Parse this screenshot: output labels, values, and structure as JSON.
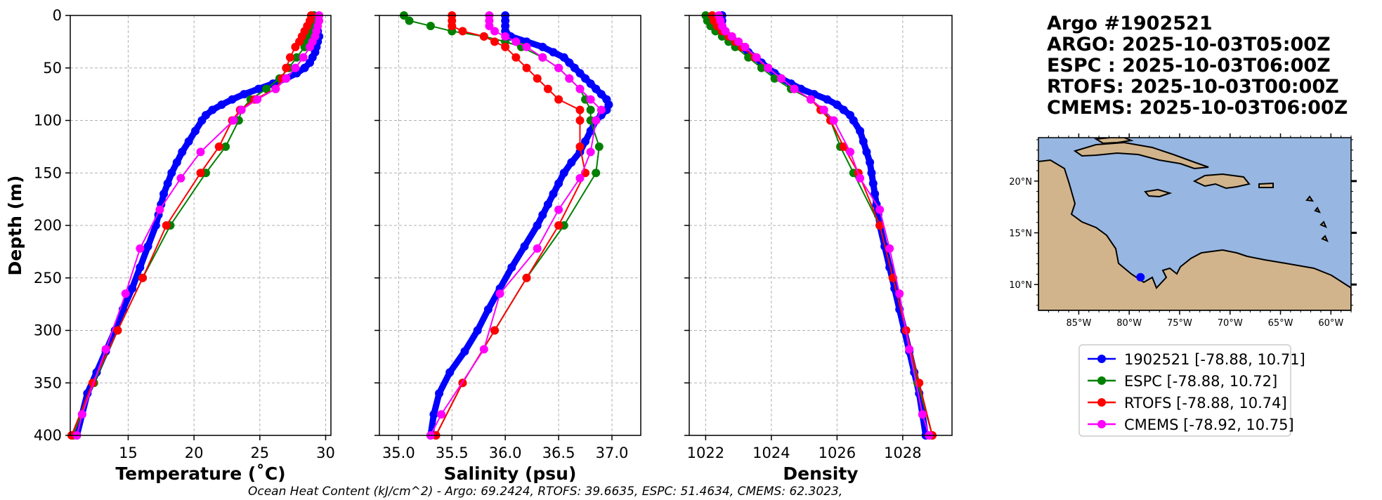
{
  "chart_data": [
    {
      "type": "line",
      "xlabel": "Temperature (˚C)",
      "ylabel": "Depth (m)",
      "xlim": [
        10.6,
        30.4
      ],
      "ylim": [
        400,
        0
      ],
      "xticks": [
        15,
        20,
        25,
        30
      ],
      "yticks": [
        0,
        50,
        100,
        150,
        200,
        250,
        300,
        350,
        400
      ],
      "grid": true,
      "series": [
        {
          "name": "1902521",
          "color": "#0000ff",
          "depth": [
            0,
            5,
            10,
            15,
            20,
            25,
            30,
            35,
            40,
            45,
            50,
            55,
            60,
            65,
            70,
            75,
            80,
            85,
            90,
            95,
            100,
            110,
            120,
            130,
            140,
            150,
            160,
            170,
            180,
            190,
            200,
            220,
            240,
            260,
            280,
            300,
            320,
            340,
            360,
            380,
            400
          ],
          "values": [
            29.1,
            29.2,
            29.3,
            29.4,
            29.5,
            29.4,
            29.3,
            29.2,
            29.0,
            28.8,
            28.4,
            27.8,
            27.0,
            26.0,
            24.9,
            23.8,
            22.9,
            22.1,
            21.4,
            20.9,
            20.6,
            20.1,
            19.6,
            19.1,
            18.7,
            18.3,
            18.0,
            17.7,
            17.5,
            17.3,
            17.1,
            16.5,
            15.9,
            15.3,
            14.6,
            14.0,
            13.3,
            12.6,
            11.9,
            11.5,
            11.1
          ]
        },
        {
          "name": "ESPC",
          "color": "#008000",
          "depth": [
            0,
            5,
            10,
            15,
            20,
            25,
            30,
            40,
            50,
            60,
            70,
            80,
            90,
            100,
            125,
            150,
            200,
            250,
            300,
            350,
            400
          ],
          "values": [
            29.1,
            29.1,
            29.0,
            28.9,
            28.8,
            28.6,
            28.4,
            27.8,
            27.2,
            26.5,
            25.5,
            24.3,
            23.6,
            23.4,
            22.4,
            20.9,
            18.2,
            16.1,
            14.2,
            12.4,
            10.8
          ]
        },
        {
          "name": "RTOFS",
          "color": "#ff0000",
          "depth": [
            0,
            5,
            10,
            15,
            20,
            25,
            30,
            40,
            50,
            60,
            70,
            80,
            90,
            100,
            125,
            150,
            200,
            250,
            300,
            350,
            400
          ],
          "values": [
            28.9,
            28.8,
            28.6,
            28.4,
            28.2,
            28.0,
            27.7,
            27.3,
            27.0,
            26.7,
            26.2,
            24.6,
            23.5,
            22.9,
            21.9,
            20.5,
            17.9,
            16.1,
            14.2,
            12.3,
            10.7
          ]
        },
        {
          "name": "CMEMS",
          "color": "#ff00ff",
          "depth": [
            0,
            5,
            10,
            15,
            20,
            25,
            30,
            40,
            50,
            60,
            70,
            80,
            90,
            100,
            130,
            155,
            185,
            222,
            265,
            318,
            380,
            400
          ],
          "values": [
            29.5,
            29.5,
            29.4,
            29.3,
            29.2,
            29.0,
            28.8,
            28.3,
            27.7,
            27.0,
            26.2,
            24.8,
            23.6,
            23.0,
            20.5,
            19.0,
            17.4,
            15.9,
            14.8,
            13.3,
            11.5,
            11.1
          ]
        }
      ]
    },
    {
      "type": "line",
      "xlabel": "Salinity (psu)",
      "ylabel": "",
      "xlim": [
        34.82,
        37.27
      ],
      "ylim": [
        400,
        0
      ],
      "xticks": [
        35.0,
        35.5,
        36.0,
        36.5,
        37.0
      ],
      "yticks": [
        0,
        50,
        100,
        150,
        200,
        250,
        300,
        350,
        400
      ],
      "grid": true,
      "series": [
        {
          "name": "1902521",
          "color": "#0000ff",
          "depth": [
            0,
            5,
            10,
            15,
            20,
            25,
            30,
            35,
            40,
            45,
            50,
            55,
            60,
            65,
            70,
            75,
            80,
            85,
            90,
            95,
            100,
            110,
            120,
            130,
            140,
            150,
            160,
            170,
            180,
            190,
            200,
            220,
            240,
            260,
            280,
            300,
            320,
            340,
            360,
            380,
            400
          ],
          "values": [
            36.0,
            36.0,
            36.0,
            36.0,
            36.05,
            36.2,
            36.35,
            36.45,
            36.55,
            36.6,
            36.65,
            36.7,
            36.75,
            36.8,
            36.85,
            36.9,
            36.95,
            36.97,
            36.95,
            36.9,
            36.85,
            36.8,
            36.75,
            36.7,
            36.62,
            36.55,
            36.5,
            36.45,
            36.4,
            36.35,
            36.3,
            36.18,
            36.06,
            35.95,
            35.84,
            35.74,
            35.62,
            35.48,
            35.38,
            35.33,
            35.3
          ]
        },
        {
          "name": "ESPC",
          "color": "#008000",
          "depth": [
            0,
            5,
            10,
            15,
            20,
            25,
            30,
            40,
            50,
            60,
            70,
            80,
            90,
            100,
            125,
            150,
            200,
            250,
            300,
            350,
            400
          ],
          "values": [
            35.05,
            35.1,
            35.3,
            35.5,
            35.8,
            36.0,
            36.15,
            36.35,
            36.5,
            36.6,
            36.7,
            36.75,
            36.8,
            36.8,
            36.88,
            36.85,
            36.55,
            36.2,
            35.9,
            35.6,
            35.35
          ]
        },
        {
          "name": "RTOFS",
          "color": "#ff0000",
          "depth": [
            0,
            5,
            10,
            15,
            20,
            25,
            30,
            40,
            50,
            60,
            70,
            80,
            90,
            100,
            125,
            150,
            200,
            250,
            300,
            350,
            400
          ],
          "values": [
            35.5,
            35.5,
            35.5,
            35.6,
            35.8,
            35.9,
            36.0,
            36.1,
            36.2,
            36.3,
            36.4,
            36.5,
            36.7,
            36.7,
            36.7,
            36.75,
            36.5,
            36.2,
            35.9,
            35.6,
            35.35
          ]
        },
        {
          "name": "CMEMS",
          "color": "#ff00ff",
          "depth": [
            0,
            5,
            10,
            15,
            20,
            25,
            30,
            40,
            50,
            60,
            70,
            80,
            90,
            100,
            130,
            155,
            185,
            222,
            265,
            318,
            380,
            400
          ],
          "values": [
            35.85,
            35.85,
            35.85,
            35.9,
            36.0,
            36.1,
            36.2,
            36.35,
            36.5,
            36.6,
            36.7,
            36.8,
            36.9,
            36.85,
            36.8,
            36.7,
            36.5,
            36.3,
            35.95,
            35.8,
            35.4,
            35.3
          ]
        }
      ]
    },
    {
      "type": "line",
      "xlabel": "Density",
      "ylabel": "",
      "xlim": [
        1021.5,
        1029.5
      ],
      "ylim": [
        400,
        0
      ],
      "xticks": [
        1022,
        1024,
        1026,
        1028
      ],
      "yticks": [
        0,
        50,
        100,
        150,
        200,
        250,
        300,
        350,
        400
      ],
      "grid": true,
      "series": [
        {
          "name": "1902521",
          "color": "#0000ff",
          "depth": [
            0,
            5,
            10,
            15,
            20,
            25,
            30,
            35,
            40,
            45,
            50,
            55,
            60,
            65,
            70,
            75,
            80,
            85,
            90,
            95,
            100,
            110,
            120,
            130,
            140,
            150,
            160,
            170,
            180,
            190,
            200,
            220,
            240,
            260,
            280,
            300,
            320,
            340,
            360,
            380,
            400
          ],
          "values": [
            1022.5,
            1022.5,
            1022.5,
            1022.6,
            1022.7,
            1022.9,
            1023.1,
            1023.3,
            1023.5,
            1023.7,
            1023.9,
            1024.1,
            1024.3,
            1024.6,
            1024.9,
            1025.3,
            1025.7,
            1026.0,
            1026.2,
            1026.4,
            1026.5,
            1026.7,
            1026.8,
            1026.9,
            1027.0,
            1027.05,
            1027.1,
            1027.15,
            1027.2,
            1027.25,
            1027.3,
            1027.45,
            1027.6,
            1027.75,
            1027.9,
            1028.05,
            1028.2,
            1028.35,
            1028.5,
            1028.6,
            1028.7
          ]
        },
        {
          "name": "ESPC",
          "color": "#008000",
          "depth": [
            0,
            5,
            10,
            15,
            20,
            25,
            30,
            40,
            50,
            60,
            70,
            80,
            90,
            100,
            125,
            150,
            200,
            250,
            300,
            350,
            400
          ],
          "values": [
            1022.0,
            1022.05,
            1022.15,
            1022.3,
            1022.5,
            1022.7,
            1022.9,
            1023.3,
            1023.7,
            1024.1,
            1024.6,
            1025.2,
            1025.6,
            1025.8,
            1026.1,
            1026.5,
            1027.3,
            1027.7,
            1028.1,
            1028.45,
            1028.9
          ]
        },
        {
          "name": "RTOFS",
          "color": "#ff0000",
          "depth": [
            0,
            5,
            10,
            15,
            20,
            25,
            30,
            40,
            50,
            60,
            70,
            80,
            90,
            100,
            125,
            150,
            200,
            250,
            300,
            350,
            400
          ],
          "values": [
            1022.2,
            1022.25,
            1022.35,
            1022.5,
            1022.7,
            1022.9,
            1023.1,
            1023.5,
            1023.9,
            1024.3,
            1024.7,
            1025.2,
            1025.5,
            1025.8,
            1026.2,
            1026.65,
            1027.3,
            1027.7,
            1028.1,
            1028.5,
            1028.9
          ]
        },
        {
          "name": "CMEMS",
          "color": "#ff00ff",
          "depth": [
            0,
            5,
            10,
            15,
            20,
            25,
            30,
            40,
            50,
            60,
            70,
            80,
            90,
            100,
            130,
            155,
            185,
            222,
            265,
            318,
            380,
            400
          ],
          "values": [
            1022.4,
            1022.45,
            1022.5,
            1022.6,
            1022.8,
            1023.0,
            1023.2,
            1023.55,
            1023.9,
            1024.3,
            1024.7,
            1025.2,
            1025.6,
            1025.9,
            1026.4,
            1026.7,
            1027.3,
            1027.6,
            1027.9,
            1028.2,
            1028.6,
            1028.8
          ]
        }
      ]
    }
  ],
  "info": {
    "title_lines": [
      "Argo #1902521",
      "ARGO: 2025-10-03T05:00Z",
      "ESPC : 2025-10-03T06:00Z",
      "RTOFS: 2025-10-03T00:00Z",
      "CMEMS: 2025-10-03T06:00Z"
    ]
  },
  "map": {
    "xticks": [
      "85°W",
      "80°W",
      "75°W",
      "70°W",
      "65°W",
      "60°W"
    ],
    "yticks": [
      "20°N",
      "15°N",
      "10°N"
    ],
    "ocean_color": "#97b6e1",
    "land_color": "#d2b48c",
    "float_marker": {
      "lon": -78.88,
      "lat": 10.71,
      "color": "#0000ff"
    }
  },
  "legend": [
    {
      "label": "1902521 [-78.88, 10.71]",
      "color": "#0000ff"
    },
    {
      "label": "ESPC [-78.88, 10.72]",
      "color": "#008000"
    },
    {
      "label": "RTOFS [-78.88, 10.74]",
      "color": "#ff0000"
    },
    {
      "label": "CMEMS [-78.92, 10.75]",
      "color": "#ff00ff"
    }
  ],
  "footnote": "Ocean Heat Content (kJ/cm^2) - Argo: 69.2424,  RTOFS: 39.6635,  ESPC: 51.4634,  CMEMS: 62.3023,"
}
